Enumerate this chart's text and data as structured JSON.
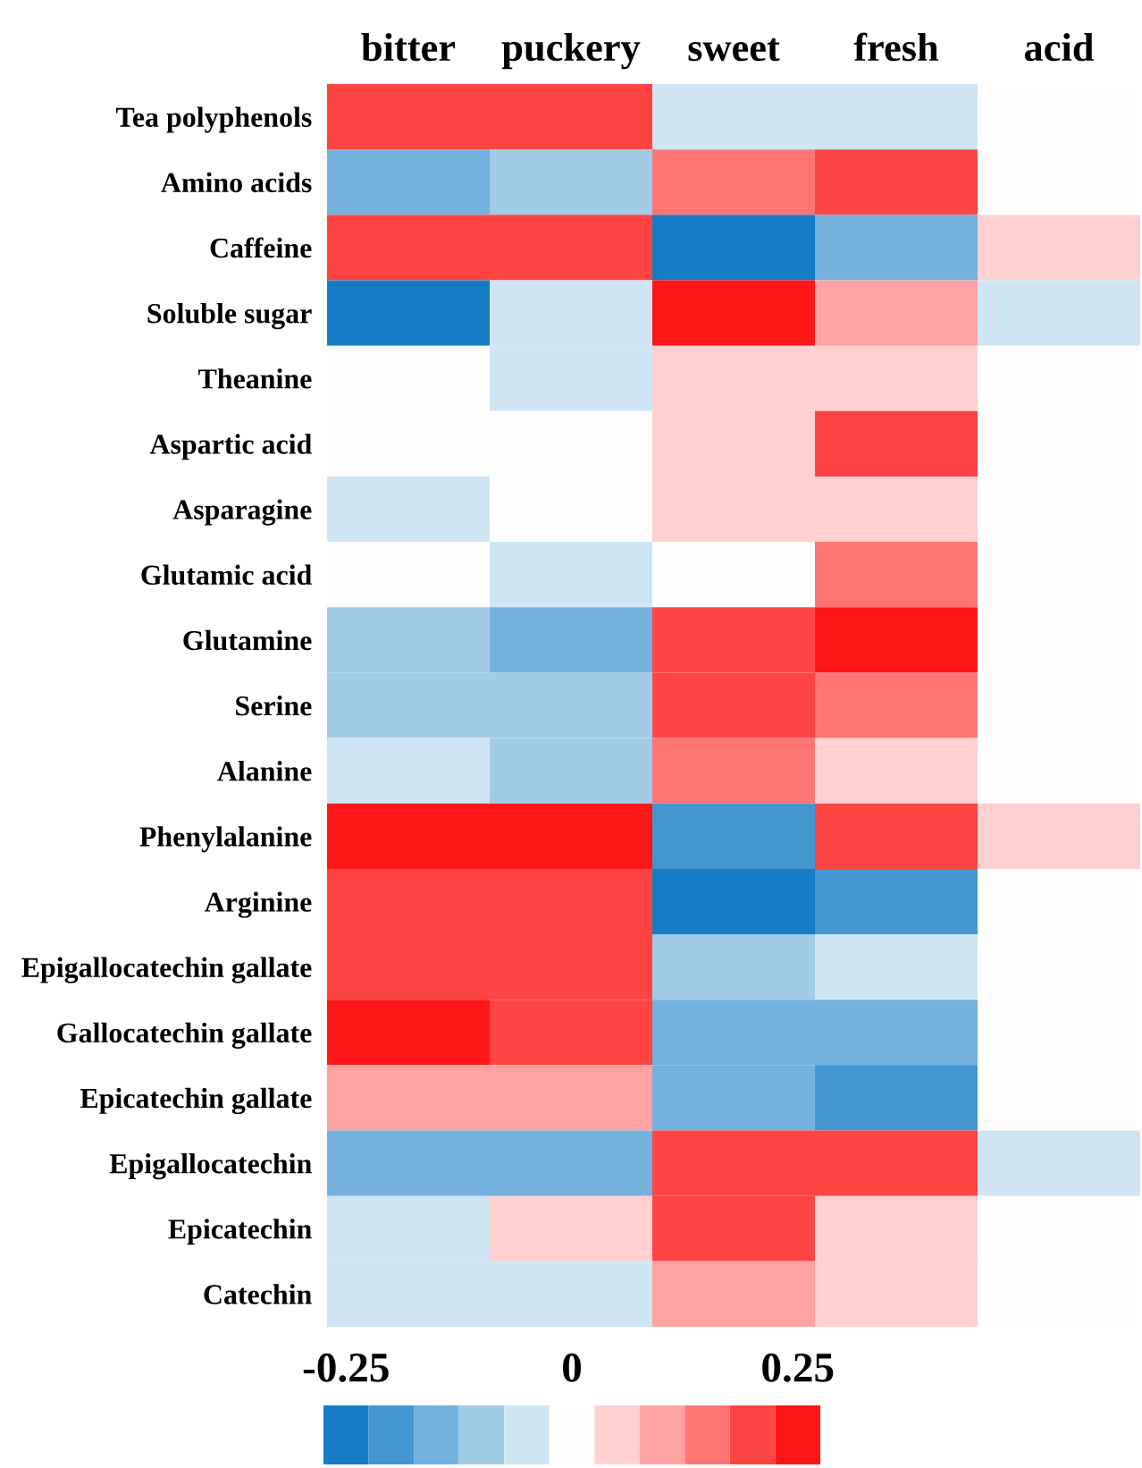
{
  "chart_data": {
    "type": "heatmap",
    "categories": [
      "bitter",
      "puckery",
      "sweet",
      "fresh",
      "acid"
    ],
    "y_categories": [
      "Tea polyphenols",
      "Amino acids",
      "Caffeine",
      "Soluble sugar",
      "Theanine",
      "Aspartic acid",
      "Asparagine",
      "Glutamic acid",
      "Glutamine",
      "Serine",
      "Alanine",
      "Phenylalanine",
      "Arginine",
      "Epigallocatechin gallate",
      "Gallocatechin gallate",
      "Epicatechin gallate",
      "Epigallocatechin",
      "Epicatechin",
      "Catechin"
    ],
    "cells": [
      [
        0.2,
        0.2,
        -0.05,
        -0.05,
        0
      ],
      [
        -0.15,
        -0.1,
        0.15,
        0.2,
        0
      ],
      [
        0.2,
        0.2,
        -0.25,
        -0.15,
        0.05
      ],
      [
        -0.25,
        -0.05,
        0.25,
        0.1,
        -0.05
      ],
      [
        0,
        -0.05,
        0.05,
        0.05,
        0
      ],
      [
        0,
        0,
        0.05,
        0.2,
        0
      ],
      [
        -0.05,
        0,
        0.05,
        0.05,
        0
      ],
      [
        0,
        -0.05,
        0,
        0.15,
        0
      ],
      [
        -0.1,
        -0.15,
        0.2,
        0.25,
        0
      ],
      [
        -0.1,
        -0.1,
        0.2,
        0.15,
        0
      ],
      [
        -0.05,
        -0.1,
        0.15,
        0.05,
        0
      ],
      [
        0.25,
        0.25,
        -0.2,
        0.2,
        0.05
      ],
      [
        0.2,
        0.2,
        -0.25,
        -0.2,
        0
      ],
      [
        0.2,
        0.2,
        -0.1,
        -0.05,
        0
      ],
      [
        0.25,
        0.2,
        -0.15,
        -0.15,
        0
      ],
      [
        0.1,
        0.1,
        -0.15,
        -0.2,
        0
      ],
      [
        -0.15,
        -0.15,
        0.2,
        0.2,
        -0.05
      ],
      [
        -0.05,
        0.05,
        0.2,
        0.05,
        0
      ],
      [
        -0.05,
        -0.05,
        0.1,
        0.05,
        0
      ]
    ],
    "clim": [
      -0.275,
      0.275
    ],
    "cticks": [
      -0.25,
      0,
      0.25
    ]
  }
}
